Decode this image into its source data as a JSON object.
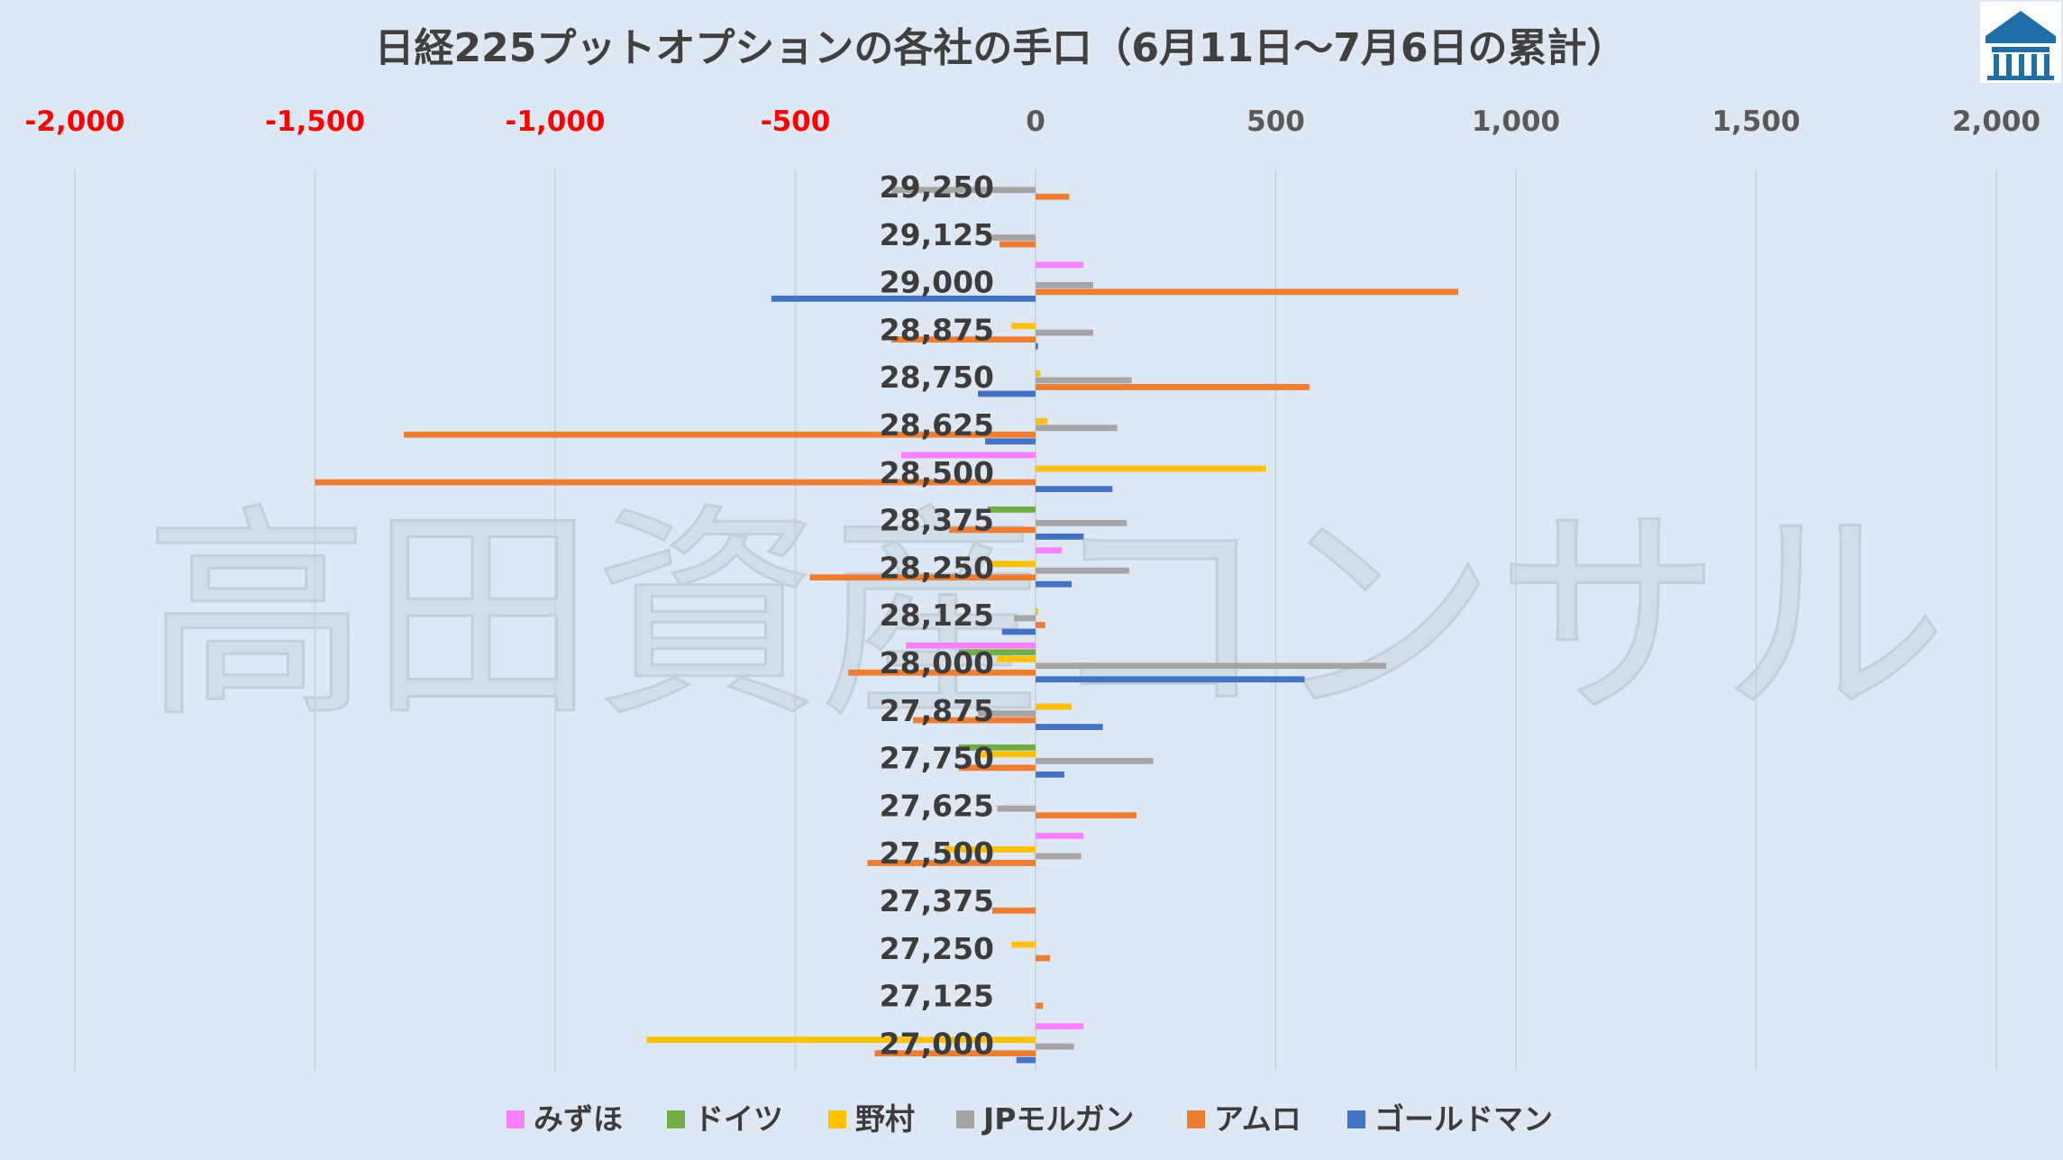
{
  "chart_data": {
    "type": "bar",
    "orientation": "horizontal",
    "title": "日経225プットオプションの各社の手口（6月11日〜7月6日の累計）",
    "watermark": "高田資産コンサル",
    "xlim": [
      -2000,
      2000
    ],
    "xticks": [
      -2000,
      -1500,
      -1000,
      -500,
      0,
      500,
      1000,
      1500,
      2000
    ],
    "xtick_labels": [
      "-2,000",
      "-1,500",
      "-1,000",
      "-500",
      "0",
      "500",
      "1,000",
      "1,500",
      "2,000"
    ],
    "negative_tick_color": "#ff0000",
    "positive_tick_color": "#595959",
    "grid": "vertical",
    "legend_position": "bottom",
    "categories": [
      "29,250",
      "29,125",
      "29,000",
      "28,875",
      "28,750",
      "28,625",
      "28,500",
      "28,375",
      "28,250",
      "28,125",
      "28,000",
      "27,875",
      "27,750",
      "27,625",
      "27,500",
      "27,375",
      "27,250",
      "27,125",
      "27,000"
    ],
    "series": [
      {
        "name": "みずほ",
        "color": "#ff80ff",
        "values": [
          0,
          0,
          100,
          0,
          0,
          0,
          -280,
          0,
          55,
          0,
          -270,
          0,
          0,
          0,
          100,
          0,
          0,
          0,
          100
        ]
      },
      {
        "name": "ドイツ",
        "color": "#70ad47",
        "values": [
          0,
          0,
          0,
          0,
          0,
          0,
          0,
          -100,
          0,
          0,
          -160,
          0,
          -160,
          0,
          0,
          0,
          0,
          0,
          0
        ]
      },
      {
        "name": "野村",
        "color": "#ffc000",
        "values": [
          0,
          0,
          0,
          -50,
          10,
          25,
          480,
          0,
          -95,
          5,
          -80,
          75,
          -120,
          0,
          -190,
          0,
          -50,
          0,
          -810
        ]
      },
      {
        "name": "JPモルガン",
        "color": "#a5a5a5",
        "values": [
          -300,
          -90,
          120,
          120,
          200,
          170,
          0,
          190,
          195,
          -45,
          730,
          -120,
          245,
          -80,
          95,
          0,
          0,
          0,
          80
        ]
      },
      {
        "name": "アムロ",
        "color": "#ed7d31",
        "values": [
          70,
          -75,
          880,
          -300,
          570,
          -1315,
          -1500,
          -180,
          -470,
          20,
          -390,
          -255,
          -160,
          210,
          -350,
          -90,
          30,
          15,
          -335
        ]
      },
      {
        "name": "ゴールドマン",
        "color": "#4472c4",
        "values": [
          0,
          0,
          -550,
          5,
          -120,
          -105,
          160,
          100,
          75,
          -70,
          560,
          140,
          60,
          0,
          0,
          0,
          0,
          0,
          -40
        ]
      }
    ]
  },
  "logo": {
    "name": "logo-icon",
    "color": "#1f6ea8"
  }
}
